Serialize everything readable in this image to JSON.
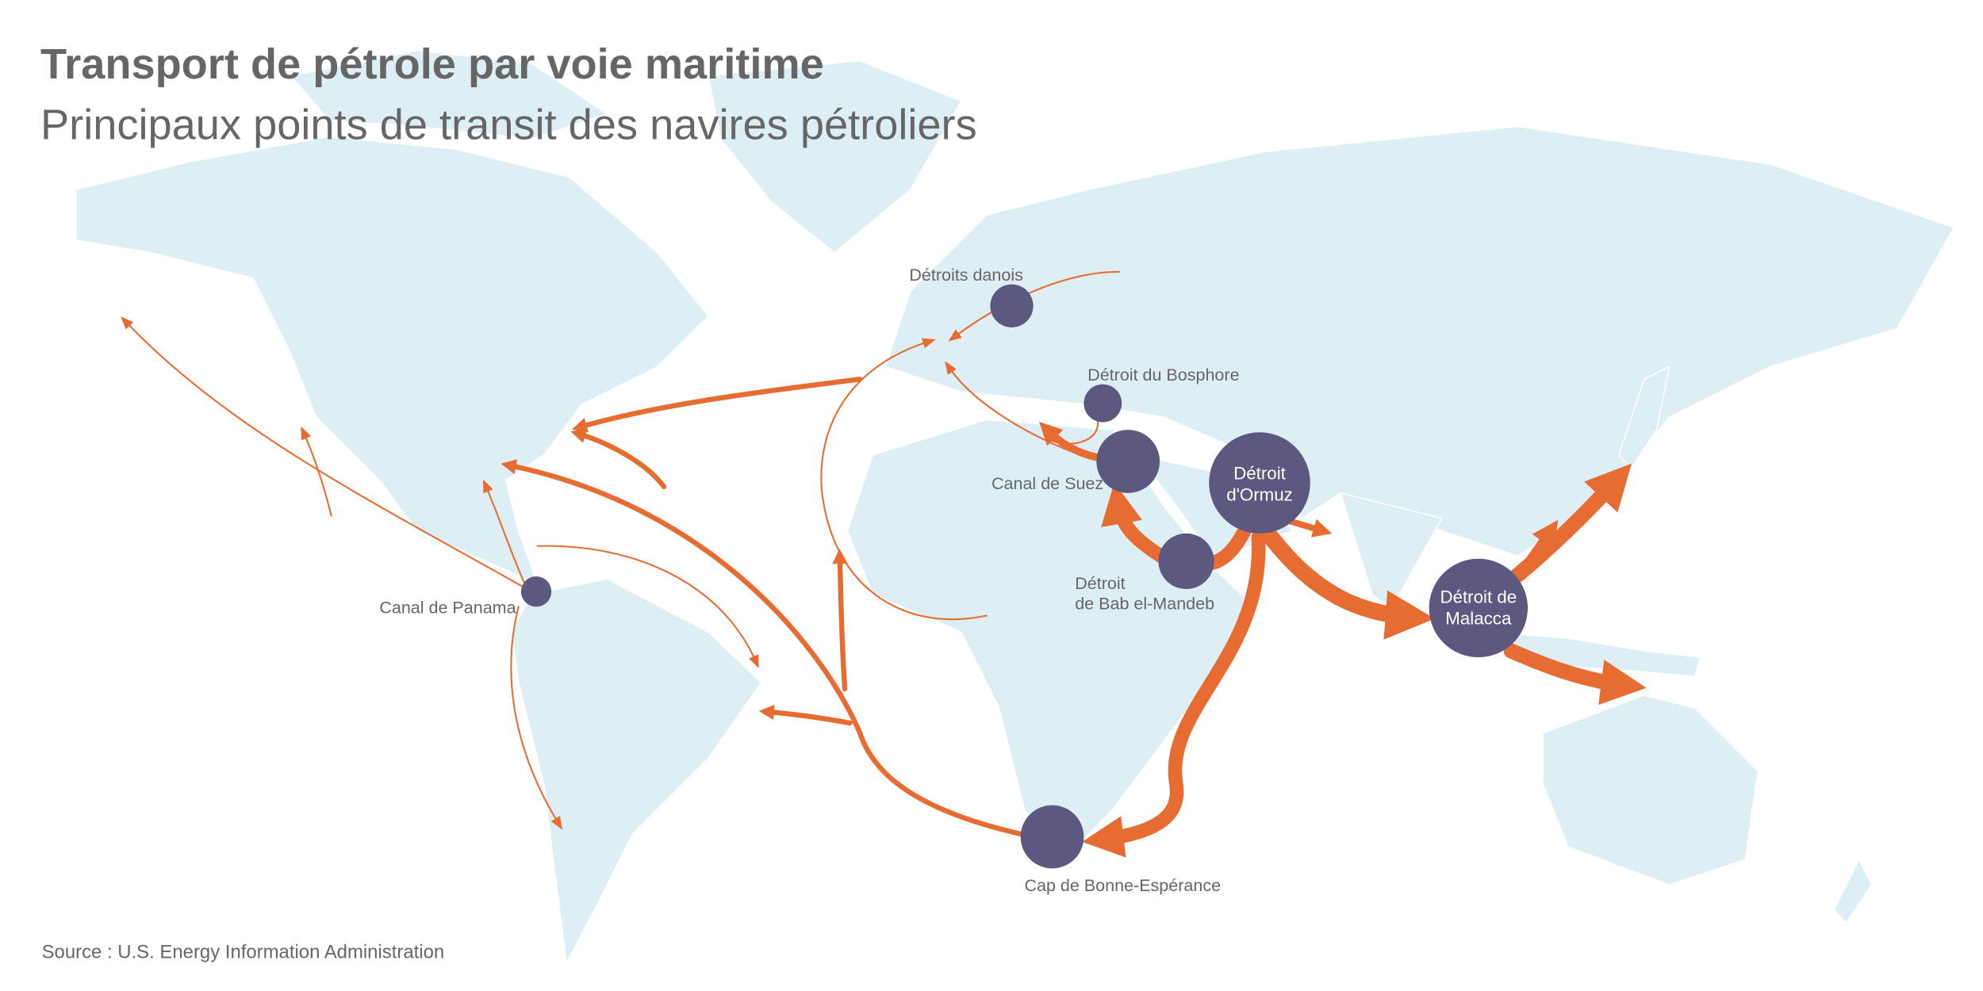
{
  "title": "Transport de pétrole par voie maritime",
  "subtitle": "Principaux points de transit des navires pétroliers",
  "source": "Source : U.S. Energy Information Administration",
  "colors": {
    "land": "#ddeef5",
    "route": "#e66c32",
    "chokepoint": "#5c5880",
    "text": "#666666"
  },
  "chokepoints": {
    "danois": "Détroits danois",
    "bosphore": "Détroit du Bosphore",
    "suez": "Canal de Suez",
    "ormuz_1": "Détroit",
    "ormuz_2": "d'Ormuz",
    "bab_1": "Détroit",
    "bab_2": "de Bab el-Mandeb",
    "malacca_1": "Détroit de",
    "malacca_2": "Malacca",
    "panama": "Canal de Panama",
    "cap": "Cap de Bonne-Espérance"
  }
}
